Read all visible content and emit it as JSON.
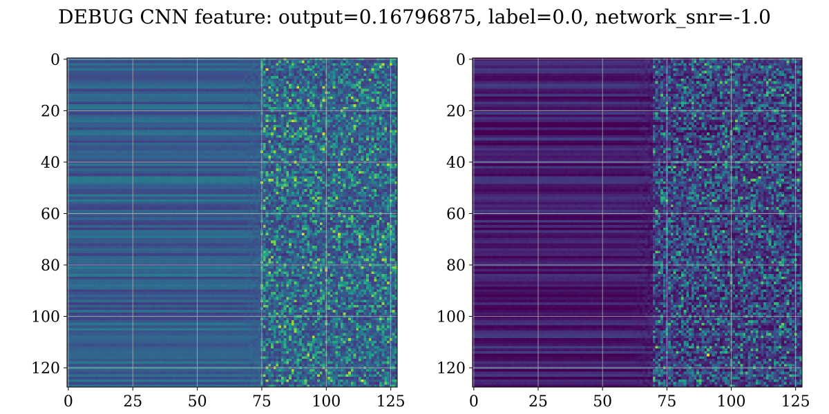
{
  "figure": {
    "title": "DEBUG CNN feature: output=0.16796875, label=0.0, network_snr=-1.0"
  },
  "chart_data": [
    {
      "type": "heatmap",
      "colormap": "viridis",
      "grid": true,
      "rows": 128,
      "cols": 128,
      "xlim": [
        0,
        127
      ],
      "ylim": [
        127,
        0
      ],
      "xticks": [
        0,
        25,
        50,
        75,
        100,
        125
      ],
      "yticks": [
        0,
        20,
        40,
        60,
        80,
        100,
        120
      ],
      "base_level": 0.3,
      "noise_onset_col": 75,
      "hotspots": [
        {
          "row": 68,
          "col": 91,
          "value": 0.95
        },
        {
          "row": 68,
          "col": 105,
          "value": 0.9
        },
        {
          "row": 64,
          "col": 98,
          "value": 0.85
        },
        {
          "row": 103,
          "col": 100,
          "value": 0.8
        },
        {
          "row": 99,
          "col": 107,
          "value": 0.85
        },
        {
          "row": 2,
          "col": 112,
          "value": 0.8
        }
      ]
    },
    {
      "type": "heatmap",
      "colormap": "viridis",
      "grid": true,
      "rows": 128,
      "cols": 128,
      "xlim": [
        0,
        127
      ],
      "ylim": [
        127,
        0
      ],
      "xticks": [
        0,
        25,
        50,
        75,
        100,
        125
      ],
      "yticks": [
        0,
        20,
        40,
        60,
        80,
        100,
        120
      ],
      "base_level": 0.08,
      "noise_onset_col": 70,
      "hotspots": [
        {
          "row": 115,
          "col": 91,
          "value": 0.95
        },
        {
          "row": 39,
          "col": 82,
          "value": 0.65
        },
        {
          "row": 100,
          "col": 122,
          "value": 0.6
        }
      ]
    }
  ]
}
